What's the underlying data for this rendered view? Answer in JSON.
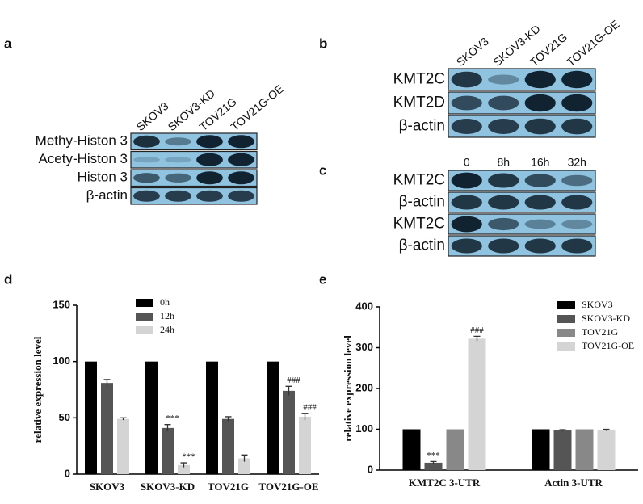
{
  "blots": [
    {
      "letter": "a",
      "columns": [
        "SKOV3",
        "SKOV3-KD",
        "TOV21G",
        "TOV21G-OE"
      ],
      "rows": [
        "Methy-Histon 3",
        "Acety-Histon 3",
        "Histon 3",
        "β-actin"
      ]
    },
    {
      "letter": "b",
      "columns": [
        "SKOV3",
        "SKOV3-KD",
        "TOV21G",
        "TOV21G-OE"
      ],
      "rows": [
        "KMT2C",
        "KMT2D",
        "β-actin"
      ]
    },
    {
      "letter": "c",
      "columns": [
        "0",
        "8h",
        "16h",
        "32h"
      ],
      "rows": [
        "KMT2C",
        "β-actin",
        "KMT2C",
        "β-actin"
      ]
    }
  ],
  "chart_data": [
    {
      "type": "bar",
      "letter": "d",
      "y_label": "relative expression level",
      "categories": [
        "SKOV3",
        "SKOV3-KD",
        "TOV21G",
        "TOV21G-OE"
      ],
      "series": [
        {
          "name": "0h",
          "color": "#000000",
          "values": [
            100,
            100,
            100,
            100
          ]
        },
        {
          "name": "12h",
          "color": "#555555",
          "values": [
            81,
            41,
            49,
            74
          ],
          "errors": [
            3,
            3,
            2,
            4
          ],
          "significance": [
            null,
            "***",
            null,
            "###"
          ]
        },
        {
          "name": "24h",
          "color": "#d4d4d4",
          "values": [
            49,
            8,
            14,
            51
          ],
          "errors": [
            1,
            2,
            3,
            3
          ],
          "significance": [
            null,
            "***",
            null,
            "###"
          ]
        }
      ],
      "ylim": [
        0,
        150
      ],
      "yticks": [
        0,
        50,
        100,
        150
      ],
      "legend": "top-left"
    },
    {
      "type": "bar",
      "letter": "e",
      "y_label": "relative expression level",
      "categories": [
        "KMT2C 3-UTR",
        "Actin 3-UTR"
      ],
      "series": [
        {
          "name": "SKOV3",
          "color": "#000000",
          "values": [
            100,
            100
          ]
        },
        {
          "name": "SKOV3-KD",
          "color": "#555555",
          "values": [
            18,
            97
          ],
          "errors": [
            3,
            2
          ],
          "significance": [
            "***",
            null
          ]
        },
        {
          "name": "TOV21G",
          "color": "#888888",
          "values": [
            100,
            100
          ]
        },
        {
          "name": "TOV21G-OE",
          "color": "#d4d4d4",
          "values": [
            322,
            98
          ],
          "errors": [
            6,
            2
          ],
          "significance": [
            "###",
            null
          ]
        }
      ],
      "ylim": [
        0,
        400
      ],
      "yticks": [
        0,
        100,
        200,
        300,
        400
      ],
      "legend": "top-right"
    }
  ]
}
